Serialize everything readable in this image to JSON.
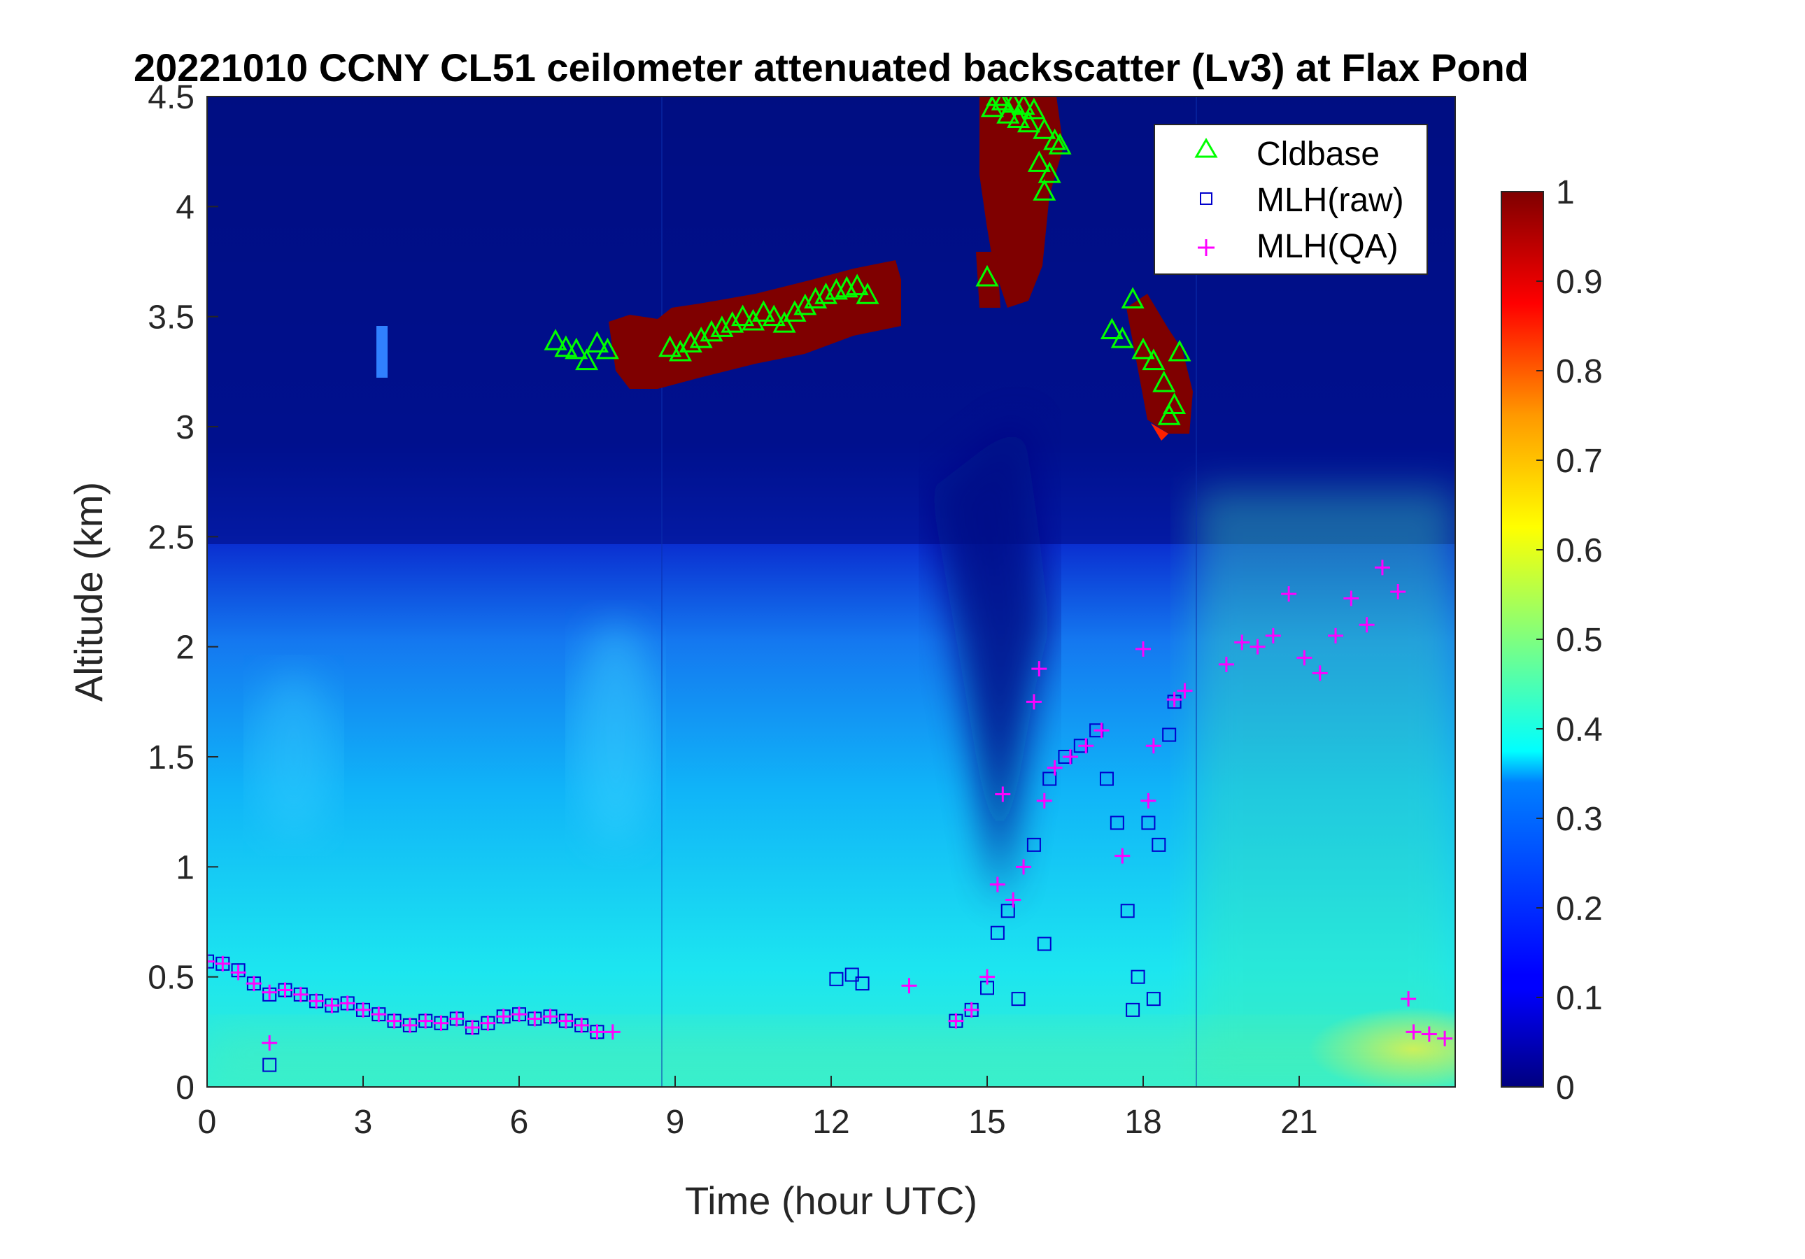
{
  "chart_data": {
    "type": "heatmap",
    "title": "20221010 CCNY CL51 ceilometer attenuated backscatter (Lv3) at Flax Pond",
    "xlabel": "Time (hour UTC)",
    "ylabel": "Altitude (km)",
    "xlim": [
      0,
      24
    ],
    "ylim": [
      0,
      4.5
    ],
    "xticks": [
      "0",
      "3",
      "6",
      "9",
      "12",
      "15",
      "18",
      "21"
    ],
    "yticks": [
      "0",
      "0.5",
      "1",
      "1.5",
      "2",
      "2.5",
      "3",
      "3.5",
      "4",
      "4.5"
    ],
    "colorbar": {
      "colormap": "jet",
      "range": [
        0,
        1
      ],
      "ticks": [
        "0",
        "0.1",
        "0.2",
        "0.3",
        "0.4",
        "0.5",
        "0.6",
        "0.7",
        "0.8",
        "0.9",
        "1"
      ]
    },
    "legend": {
      "position": "top-right",
      "entries": [
        {
          "label": "Cldbase",
          "marker": "triangle",
          "color": "#00ff00"
        },
        {
          "label": "MLH(raw)",
          "marker": "square",
          "color": "#0000cc"
        },
        {
          "label": "MLH(QA)",
          "marker": "plus",
          "color": "#ff00ff"
        }
      ]
    },
    "series": [
      {
        "name": "Cldbase",
        "marker": "triangle",
        "color": "#00ff00",
        "x": [
          6.7,
          6.9,
          7.1,
          7.3,
          7.5,
          7.7,
          8.9,
          9.1,
          9.3,
          9.5,
          9.7,
          9.9,
          10.1,
          10.3,
          10.5,
          10.7,
          10.9,
          11.1,
          11.3,
          11.5,
          11.7,
          11.9,
          12.1,
          12.3,
          12.5,
          12.7,
          15.0,
          15.1,
          15.2,
          15.3,
          15.4,
          15.5,
          15.6,
          15.7,
          15.8,
          15.9,
          16.0,
          16.1,
          16.2,
          16.3,
          16.4,
          16.1,
          17.4,
          17.6,
          17.8,
          18.0,
          18.2,
          18.4,
          18.6,
          18.5,
          18.7
        ],
        "y": [
          3.39,
          3.36,
          3.35,
          3.3,
          3.38,
          3.35,
          3.36,
          3.34,
          3.38,
          3.4,
          3.43,
          3.45,
          3.47,
          3.5,
          3.48,
          3.52,
          3.5,
          3.47,
          3.52,
          3.55,
          3.58,
          3.6,
          3.62,
          3.63,
          3.64,
          3.6,
          3.68,
          4.45,
          4.5,
          4.48,
          4.42,
          4.47,
          4.4,
          4.46,
          4.38,
          4.44,
          4.2,
          4.35,
          4.15,
          4.3,
          4.28,
          4.07,
          3.44,
          3.4,
          3.58,
          3.35,
          3.3,
          3.2,
          3.1,
          3.05,
          3.34
        ]
      },
      {
        "name": "MLH(raw)",
        "marker": "square",
        "color": "#0000cc",
        "x": [
          0.0,
          0.3,
          0.6,
          0.9,
          1.2,
          1.2,
          1.5,
          1.8,
          2.1,
          2.4,
          2.7,
          3.0,
          3.3,
          3.6,
          3.9,
          4.2,
          4.5,
          4.8,
          5.1,
          5.4,
          5.7,
          6.0,
          6.3,
          6.6,
          6.9,
          7.2,
          7.5,
          12.1,
          12.4,
          12.6,
          14.4,
          14.7,
          15.0,
          15.2,
          15.4,
          15.6,
          15.9,
          16.2,
          16.5,
          16.8,
          17.1,
          17.3,
          17.5,
          17.7,
          17.9,
          18.1,
          18.3,
          18.5,
          18.6,
          16.1,
          17.8,
          18.2
        ],
        "y": [
          0.57,
          0.56,
          0.53,
          0.47,
          0.42,
          0.1,
          0.44,
          0.42,
          0.39,
          0.37,
          0.38,
          0.35,
          0.33,
          0.3,
          0.28,
          0.3,
          0.29,
          0.31,
          0.27,
          0.29,
          0.32,
          0.33,
          0.31,
          0.32,
          0.3,
          0.28,
          0.25,
          0.49,
          0.51,
          0.47,
          0.3,
          0.35,
          0.45,
          0.7,
          0.8,
          0.4,
          1.1,
          1.4,
          1.5,
          1.55,
          1.62,
          1.4,
          1.2,
          0.8,
          0.5,
          1.2,
          1.1,
          1.6,
          1.75,
          0.65,
          0.35,
          0.4
        ]
      },
      {
        "name": "MLH(QA)",
        "marker": "plus",
        "color": "#ff00ff",
        "x": [
          0.0,
          0.3,
          0.6,
          0.9,
          1.2,
          1.5,
          1.8,
          2.1,
          2.4,
          2.7,
          3.0,
          3.3,
          3.6,
          3.9,
          4.2,
          4.5,
          4.8,
          5.1,
          5.4,
          5.7,
          6.0,
          6.3,
          6.6,
          6.9,
          7.2,
          7.5,
          7.8,
          1.2,
          13.5,
          14.4,
          14.7,
          15.0,
          15.2,
          15.3,
          15.5,
          15.7,
          15.9,
          16.0,
          16.1,
          16.3,
          16.6,
          16.9,
          17.2,
          17.6,
          18.0,
          18.1,
          18.2,
          18.6,
          18.8,
          23.1,
          19.6,
          19.9,
          20.2,
          20.5,
          20.8,
          21.1,
          21.4,
          21.7,
          22.0,
          22.3,
          22.6,
          22.9,
          23.2,
          23.5,
          23.8
        ],
        "y": [
          0.57,
          0.56,
          0.52,
          0.47,
          0.43,
          0.44,
          0.42,
          0.39,
          0.37,
          0.38,
          0.35,
          0.33,
          0.3,
          0.28,
          0.3,
          0.29,
          0.31,
          0.27,
          0.29,
          0.32,
          0.33,
          0.31,
          0.32,
          0.3,
          0.28,
          0.25,
          0.25,
          0.2,
          0.46,
          0.3,
          0.35,
          0.5,
          0.92,
          1.33,
          0.85,
          1.0,
          1.75,
          1.9,
          1.3,
          1.45,
          1.5,
          1.55,
          1.62,
          1.05,
          1.99,
          1.3,
          1.55,
          1.76,
          1.8,
          0.4,
          1.92,
          2.02,
          2.0,
          2.05,
          2.24,
          1.95,
          1.88,
          2.05,
          2.22,
          2.1,
          2.36,
          2.25,
          0.25,
          0.24,
          0.22
        ]
      }
    ]
  }
}
